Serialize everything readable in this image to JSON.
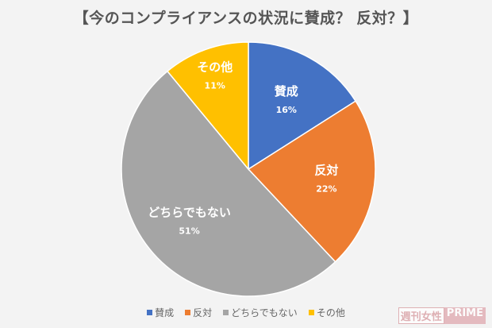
{
  "chart_data": {
    "type": "pie",
    "title": "【今のコンプライアンスの状況に賛成？ 反対？】",
    "slices": [
      {
        "label": "賛成",
        "value": 16,
        "value_label": "16%",
        "color": "#4472C4"
      },
      {
        "label": "反対",
        "value": 22,
        "value_label": "22%",
        "color": "#ED7D31"
      },
      {
        "label": "どちらでもない",
        "value": 51,
        "value_label": "51%",
        "color": "#A5A5A5"
      },
      {
        "label": "その他",
        "value": 11,
        "value_label": "11%",
        "color": "#FFC000"
      }
    ],
    "start": "top",
    "direction": "clockwise",
    "legend_position": "bottom"
  },
  "watermark": {
    "part1": "週刊女性",
    "part2": "PRIME"
  }
}
